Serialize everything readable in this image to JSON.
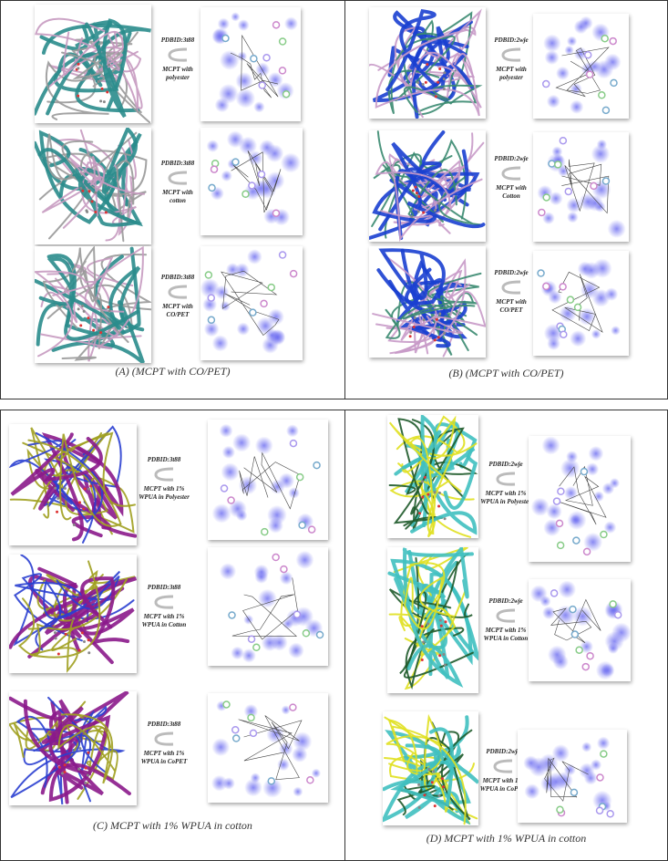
{
  "panels": [
    {
      "caption": "(A)  (MCPT with CO/PET)",
      "rows": [
        {
          "pdbid": "PDBID:3t88",
          "label": "MCPT with polyester"
        },
        {
          "pdbid": "PDBID:3t88",
          "label": "MCPT  with cotton"
        },
        {
          "pdbid": "PDBID:3t88",
          "label": "MCPT with CO/PET"
        }
      ]
    },
    {
      "caption": "(B)  (MCPT with CO/PET)",
      "rows": [
        {
          "pdbid": "PDBID:2wje",
          "label": "MCPT with polyester"
        },
        {
          "pdbid": "PDBID:2wje",
          "label": "MCPT with Cotton"
        },
        {
          "pdbid": "PDBID:2wje",
          "label": "MCPT with CO/PET"
        }
      ]
    },
    {
      "caption": "(C) MCPT with 1% WPUA in cotton",
      "rows": [
        {
          "pdbid": "PDBID:3t88",
          "label": "MCPT with 1% WPUA in Polyester"
        },
        {
          "pdbid": "PDBID:3t88",
          "label": "MCPT with 1% WPUA in Cotton"
        },
        {
          "pdbid": "PDBID:3t88",
          "label": "MCPT with 1% WPUA in CoPET"
        }
      ]
    },
    {
      "caption": "(D) MCPT with 1% WPUA in cotton",
      "rows": [
        {
          "pdbid": "PDBID:2wje",
          "label": "MCPT with 1% WPUA in Polyester"
        },
        {
          "pdbid": "PDBID:2wje",
          "label": "MCPT with 1% WPUA in Cotton"
        },
        {
          "pdbid": "PDBID:2wje",
          "label": "MCPT with 1% WPUA in CoPET"
        }
      ]
    }
  ]
}
